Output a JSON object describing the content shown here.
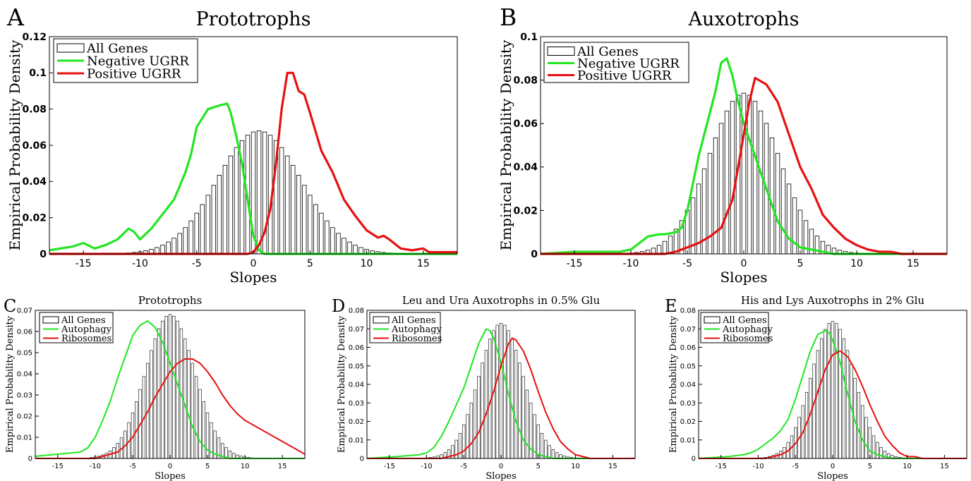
{
  "panels": [
    {
      "letter": "A",
      "title": "Prototrophs",
      "xlabel": "Slopes",
      "ylabel": "Empirical Probability Density"
    },
    {
      "letter": "B",
      "title": "Auxotrophs",
      "xlabel": "Slopes",
      "ylabel": "Empirical Probability Density"
    },
    {
      "letter": "C",
      "title": "Prototrophs",
      "xlabel": "Slopes",
      "ylabel": "Empirical Probability Density"
    },
    {
      "letter": "D",
      "title": "Leu and Ura Auxotrophs in 0.5% Glu",
      "xlabel": "Slopes",
      "ylabel": "Empirical Probability Density"
    },
    {
      "letter": "E",
      "title": "His and Lys Auxotrophs in 2% Glu",
      "xlabel": "Slopes",
      "ylabel": "Empirical Probability Density"
    }
  ],
  "colors": {
    "hist_edge": "#000000",
    "green": "#22e622",
    "red": "#e81010"
  },
  "chart_data": [
    {
      "type": "bar+line",
      "title": "Prototrophs",
      "xlabel": "Slopes",
      "ylabel": "Empirical Probability Density",
      "xlim": [
        -18,
        18
      ],
      "ylim": [
        0,
        0.12
      ],
      "xticks": [
        -15,
        -10,
        -5,
        0,
        5,
        10,
        15
      ],
      "yticks": [
        0,
        0.02,
        0.04,
        0.06,
        0.08,
        0.1,
        0.12
      ],
      "ytick_labels": [
        "0",
        "0.02",
        "0.04",
        "0.06",
        "0.08",
        "0.1",
        "0.12"
      ],
      "legend": {
        "placement": "top-left",
        "entries": [
          "All Genes",
          "Negative UGRR",
          "Positive UGRR"
        ]
      },
      "histogram": {
        "name": "All Genes",
        "mean": 0.5,
        "sd": 3.7,
        "peak": 0.068,
        "bin_width": 0.5,
        "range": [
          -16,
          16
        ]
      },
      "series": [
        {
          "name": "Negative UGRR",
          "color": "green",
          "x": [
            -18,
            -16,
            -15,
            -14,
            -13,
            -12,
            -11,
            -10.5,
            -10,
            -9,
            -8,
            -7,
            -6,
            -5.5,
            -5,
            -4,
            -3,
            -2.3,
            -2,
            -1.5,
            -1,
            -0.5,
            0,
            0.5,
            1,
            2,
            5,
            10,
            15,
            18
          ],
          "y": [
            0.002,
            0.004,
            0.006,
            0.003,
            0.005,
            0.008,
            0.014,
            0.012,
            0.008,
            0.014,
            0.022,
            0.03,
            0.045,
            0.055,
            0.07,
            0.08,
            0.082,
            0.083,
            0.078,
            0.065,
            0.05,
            0.03,
            0.01,
            0.002,
            0,
            0,
            0,
            0,
            0,
            0
          ]
        },
        {
          "name": "Positive UGRR",
          "color": "red",
          "x": [
            -18,
            -5,
            -1,
            -0.5,
            0,
            0.5,
            1,
            1.5,
            2,
            2.5,
            3,
            3.5,
            4,
            4.5,
            5,
            6,
            7,
            8,
            9,
            10,
            11,
            11.5,
            12,
            13,
            14,
            15,
            15.5,
            16,
            18
          ],
          "y": [
            0,
            0,
            0,
            0,
            0.001,
            0.005,
            0.012,
            0.025,
            0.05,
            0.08,
            0.1,
            0.1,
            0.09,
            0.088,
            0.078,
            0.057,
            0.045,
            0.03,
            0.021,
            0.013,
            0.009,
            0.01,
            0.008,
            0.003,
            0.002,
            0.003,
            0.001,
            0.001,
            0.001
          ]
        }
      ]
    },
    {
      "type": "bar+line",
      "title": "Auxotrophs",
      "xlabel": "Slopes",
      "ylabel": "Empirical Probability Density",
      "xlim": [
        -18,
        18
      ],
      "ylim": [
        0,
        0.1
      ],
      "xticks": [
        -15,
        -10,
        -5,
        0,
        5,
        10,
        15
      ],
      "yticks": [
        0,
        0.02,
        0.04,
        0.06,
        0.08,
        0.1
      ],
      "ytick_labels": [
        "0",
        "0.02",
        "0.04",
        "0.06",
        "0.08",
        "0.1"
      ],
      "legend": {
        "placement": "top-left",
        "entries": [
          "All Genes",
          "Negative UGRR",
          "Positive UGRR"
        ]
      },
      "histogram": {
        "name": "All Genes",
        "mean": 0,
        "sd": 3.1,
        "peak": 0.074,
        "bin_width": 0.5,
        "range": [
          -14,
          14
        ]
      },
      "series": [
        {
          "name": "Negative UGRR",
          "color": "green",
          "x": [
            -18,
            -15,
            -11,
            -10,
            -8.5,
            -7.5,
            -7,
            -6,
            -5.5,
            -5,
            -4,
            -3,
            -2.5,
            -2,
            -1.5,
            -1,
            -0.5,
            0,
            1,
            2,
            3,
            4,
            5,
            6,
            7,
            8,
            10,
            18
          ],
          "y": [
            0,
            0.001,
            0.001,
            0.002,
            0.008,
            0.009,
            0.009,
            0.01,
            0.012,
            0.02,
            0.045,
            0.065,
            0.075,
            0.088,
            0.09,
            0.082,
            0.07,
            0.06,
            0.045,
            0.03,
            0.015,
            0.007,
            0.003,
            0.002,
            0.001,
            0,
            0,
            0
          ]
        },
        {
          "name": "Positive UGRR",
          "color": "red",
          "x": [
            -18,
            -7,
            -6,
            -5,
            -4,
            -3,
            -2,
            -1,
            -0.5,
            0,
            0.5,
            1,
            2,
            3,
            4,
            5,
            6,
            7,
            8,
            9,
            10,
            11,
            12,
            13,
            14,
            18
          ],
          "y": [
            0,
            0,
            0.001,
            0.003,
            0.005,
            0.008,
            0.012,
            0.025,
            0.04,
            0.055,
            0.07,
            0.081,
            0.078,
            0.07,
            0.055,
            0.04,
            0.03,
            0.018,
            0.012,
            0.007,
            0.004,
            0.002,
            0.001,
            0.001,
            0,
            0
          ]
        }
      ]
    },
    {
      "type": "bar+line",
      "title": "Prototrophs",
      "xlabel": "Slopes",
      "ylabel": "Empirical Probability Density",
      "xlim": [
        -18,
        18
      ],
      "ylim": [
        0,
        0.07
      ],
      "xticks": [
        -15,
        -10,
        -5,
        0,
        5,
        10,
        15
      ],
      "yticks": [
        0,
        0.01,
        0.02,
        0.03,
        0.04,
        0.05,
        0.06,
        0.07
      ],
      "ytick_labels": [
        "0",
        "0.01",
        "0.02",
        "0.03",
        "0.04",
        "0.05",
        "0.06",
        "0.07"
      ],
      "legend": {
        "placement": "top-left",
        "entries": [
          "All Genes",
          "Autophagy",
          "Ribosomes"
        ]
      },
      "histogram": {
        "name": "All Genes",
        "mean": 0,
        "sd": 3.3,
        "peak": 0.068,
        "bin_width": 0.5,
        "range": [
          -16,
          16
        ]
      },
      "series": [
        {
          "name": "Autophagy",
          "color": "green",
          "x": [
            -18,
            -15,
            -12,
            -11,
            -10,
            -9,
            -8,
            -7,
            -6,
            -5,
            -4,
            -3,
            -2,
            -1,
            0,
            1,
            2,
            3,
            4,
            5,
            6,
            7,
            8,
            9,
            10,
            18
          ],
          "y": [
            0.001,
            0.002,
            0.003,
            0.005,
            0.01,
            0.018,
            0.027,
            0.038,
            0.048,
            0.058,
            0.063,
            0.065,
            0.062,
            0.055,
            0.045,
            0.035,
            0.025,
            0.015,
            0.008,
            0.004,
            0.002,
            0.001,
            0,
            0,
            0,
            0
          ]
        },
        {
          "name": "Ribosomes",
          "color": "red",
          "x": [
            -18,
            -10,
            -9,
            -8,
            -7,
            -6,
            -5,
            -4,
            -3,
            -2,
            -1,
            0,
            1,
            2,
            3,
            4,
            5,
            6,
            7,
            8,
            9,
            10,
            11,
            12,
            13,
            14,
            15,
            16,
            17,
            18
          ],
          "y": [
            0,
            0,
            0.001,
            0.002,
            0.003,
            0.006,
            0.01,
            0.016,
            0.022,
            0.029,
            0.035,
            0.041,
            0.045,
            0.047,
            0.047,
            0.045,
            0.041,
            0.036,
            0.03,
            0.025,
            0.021,
            0.018,
            0.016,
            0.014,
            0.012,
            0.01,
            0.008,
            0.006,
            0.004,
            0.002
          ]
        }
      ]
    },
    {
      "type": "bar+line",
      "title": "Leu and Ura Auxotrophs in 0.5% Glu",
      "xlabel": "Slopes",
      "ylabel": "Empirical Probability Density",
      "xlim": [
        -18,
        18
      ],
      "ylim": [
        0,
        0.08
      ],
      "xticks": [
        -15,
        -10,
        -5,
        0,
        5,
        10,
        15
      ],
      "yticks": [
        0,
        0.01,
        0.02,
        0.03,
        0.04,
        0.05,
        0.06,
        0.07,
        0.08
      ],
      "ytick_labels": [
        "0",
        "0.01",
        "0.02",
        "0.03",
        "0.04",
        "0.05",
        "0.06",
        "0.07",
        "0.08"
      ],
      "legend": {
        "placement": "top-left",
        "entries": [
          "All Genes",
          "Autophagy",
          "Ribosomes"
        ]
      },
      "histogram": {
        "name": "All Genes",
        "mean": 0,
        "sd": 3.0,
        "peak": 0.073,
        "bin_width": 0.5,
        "range": [
          -14,
          14
        ]
      },
      "series": [
        {
          "name": "Autophagy",
          "color": "green",
          "x": [
            -18,
            -14,
            -11,
            -10,
            -9,
            -8,
            -7,
            -6,
            -5,
            -4,
            -3,
            -2,
            -1.5,
            -1,
            0,
            1,
            2,
            3,
            4,
            5,
            6,
            7,
            8,
            18
          ],
          "y": [
            0,
            0.001,
            0.002,
            0.003,
            0.006,
            0.012,
            0.02,
            0.029,
            0.038,
            0.05,
            0.062,
            0.07,
            0.069,
            0.065,
            0.052,
            0.035,
            0.02,
            0.01,
            0.005,
            0.002,
            0.001,
            0,
            0,
            0
          ]
        },
        {
          "name": "Ribosomes",
          "color": "red",
          "x": [
            -18,
            -8,
            -7,
            -6,
            -5,
            -4,
            -3,
            -2,
            -1,
            0,
            1,
            1.5,
            2,
            3,
            4,
            5,
            6,
            7,
            8,
            9,
            10,
            11,
            12,
            13,
            18
          ],
          "y": [
            0,
            0,
            0.001,
            0.002,
            0.004,
            0.008,
            0.014,
            0.024,
            0.036,
            0.05,
            0.062,
            0.065,
            0.064,
            0.058,
            0.048,
            0.036,
            0.025,
            0.016,
            0.009,
            0.005,
            0.002,
            0.001,
            0,
            0,
            0
          ]
        }
      ]
    },
    {
      "type": "bar+line",
      "title": "His and Lys Auxotrophs in 2% Glu",
      "xlabel": "Slopes",
      "ylabel": "Empirical Probability Density",
      "xlim": [
        -18,
        18
      ],
      "ylim": [
        0,
        0.08
      ],
      "xticks": [
        -15,
        -10,
        -5,
        0,
        5,
        10,
        15
      ],
      "yticks": [
        0,
        0.01,
        0.02,
        0.03,
        0.04,
        0.05,
        0.06,
        0.07,
        0.08
      ],
      "ytick_labels": [
        "0",
        "0.01",
        "0.02",
        "0.03",
        "0.04",
        "0.05",
        "0.06",
        "0.07",
        "0.08"
      ],
      "legend": {
        "placement": "top-left",
        "entries": [
          "All Genes",
          "Autophagy",
          "Ribosomes"
        ]
      },
      "histogram": {
        "name": "All Genes",
        "mean": 0,
        "sd": 2.9,
        "peak": 0.074,
        "bin_width": 0.5,
        "range": [
          -14,
          14
        ]
      },
      "series": [
        {
          "name": "Autophagy",
          "color": "green",
          "x": [
            -18,
            -14,
            -12,
            -11,
            -10,
            -9,
            -8,
            -7,
            -6,
            -5,
            -4,
            -3,
            -2,
            -1,
            -0.5,
            0,
            1,
            2,
            3,
            4,
            5,
            6,
            7,
            8,
            18
          ],
          "y": [
            0,
            0.001,
            0.002,
            0.003,
            0.005,
            0.008,
            0.011,
            0.015,
            0.021,
            0.032,
            0.045,
            0.058,
            0.067,
            0.069,
            0.068,
            0.064,
            0.052,
            0.035,
            0.02,
            0.01,
            0.004,
            0.002,
            0.001,
            0,
            0
          ]
        },
        {
          "name": "Ribosomes",
          "color": "red",
          "x": [
            -18,
            -9,
            -8,
            -7,
            -6,
            -5,
            -4,
            -3,
            -2,
            -1,
            0,
            1,
            2,
            3,
            4,
            5,
            6,
            7,
            8,
            9,
            10,
            11,
            12,
            18
          ],
          "y": [
            0,
            0,
            0.001,
            0.002,
            0.004,
            0.008,
            0.014,
            0.024,
            0.036,
            0.048,
            0.056,
            0.058,
            0.055,
            0.048,
            0.039,
            0.029,
            0.02,
            0.012,
            0.007,
            0.003,
            0.001,
            0.001,
            0,
            0
          ]
        }
      ]
    }
  ]
}
